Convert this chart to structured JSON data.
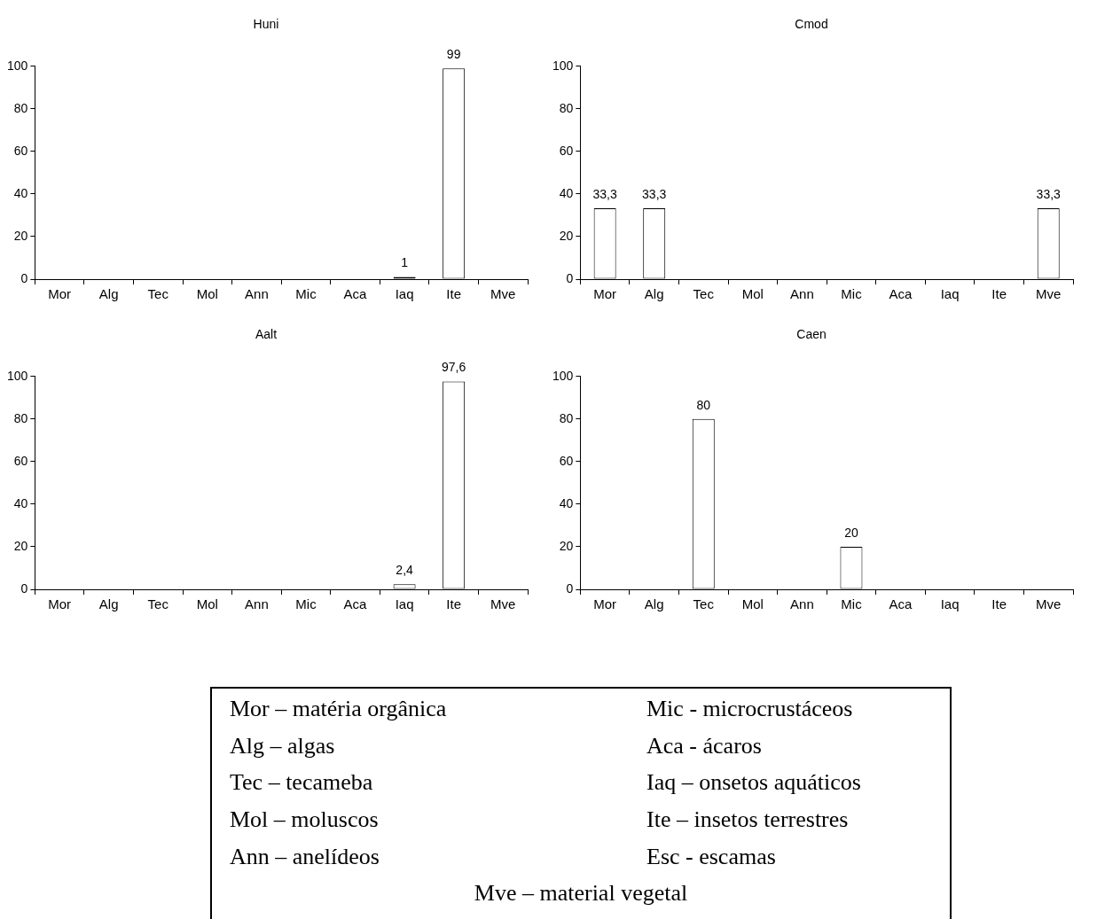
{
  "chart_data": [
    {
      "type": "bar",
      "title": "Huni",
      "categories": [
        "Mor",
        "Alg",
        "Tec",
        "Mol",
        "Ann",
        "Mic",
        "Aca",
        "Iaq",
        "Ite",
        "Mve"
      ],
      "values": [
        0,
        0,
        0,
        0,
        0,
        0,
        0,
        1,
        99,
        0
      ],
      "value_labels": [
        null,
        null,
        null,
        null,
        null,
        null,
        null,
        "1",
        "99",
        null
      ],
      "colors": [
        "#ffffff",
        "#ffffff",
        "#ffffff",
        "#ffffff",
        "#ffffff",
        "#ffffff",
        "#ffffff",
        "#000000",
        "#ffffff",
        "#ffffff"
      ],
      "ylim": [
        0,
        100
      ],
      "yticks": [
        0,
        20,
        40,
        60,
        80,
        100
      ]
    },
    {
      "type": "bar",
      "title": "Cmod",
      "categories": [
        "Mor",
        "Alg",
        "Tec",
        "Mol",
        "Ann",
        "Mic",
        "Aca",
        "Iaq",
        "Ite",
        "Mve"
      ],
      "values": [
        33.3,
        33.3,
        0,
        0,
        0,
        0,
        0,
        0,
        0,
        33.3
      ],
      "value_labels": [
        "33,3",
        "33,3",
        null,
        null,
        null,
        null,
        null,
        null,
        null,
        "33,3"
      ],
      "color": "#ffffff",
      "ylim": [
        0,
        100
      ],
      "yticks": [
        0,
        20,
        40,
        60,
        80,
        100
      ]
    },
    {
      "type": "bar",
      "title": "Aalt",
      "categories": [
        "Mor",
        "Alg",
        "Tec",
        "Mol",
        "Ann",
        "Mic",
        "Aca",
        "Iaq",
        "Ite",
        "Mve"
      ],
      "values": [
        0,
        0,
        0,
        0,
        0,
        0,
        0,
        2.4,
        97.6,
        0
      ],
      "value_labels": [
        null,
        null,
        null,
        null,
        null,
        null,
        null,
        "2,4",
        "97,6",
        null
      ],
      "color": "#ffffff",
      "ylim": [
        0,
        100
      ],
      "yticks": [
        0,
        20,
        40,
        60,
        80,
        100
      ]
    },
    {
      "type": "bar",
      "title": "Caen",
      "categories": [
        "Mor",
        "Alg",
        "Tec",
        "Mol",
        "Ann",
        "Mic",
        "Aca",
        "Iaq",
        "Ite",
        "Mve"
      ],
      "values": [
        0,
        0,
        80,
        0,
        0,
        20,
        0,
        0,
        0,
        0
      ],
      "value_labels": [
        null,
        null,
        "80",
        null,
        null,
        "20",
        null,
        null,
        null,
        null
      ],
      "color": "#ffffff",
      "ylim": [
        0,
        100
      ],
      "yticks": [
        0,
        20,
        40,
        60,
        80,
        100
      ]
    },
    {
      "type": "other",
      "annotations": [
        "Mor – matéria orgânica",
        "Mic - microcrustáceos",
        "Alg – algas",
        "Aca - ácaros",
        "Tec – tecameba",
        "Iaq – onsetos aquáticos",
        "Mol – moluscos",
        "Ite – insetos terrestres",
        "Ann – anelídeos",
        "Esc - escamas",
        "Mve – material vegetal"
      ]
    }
  ]
}
